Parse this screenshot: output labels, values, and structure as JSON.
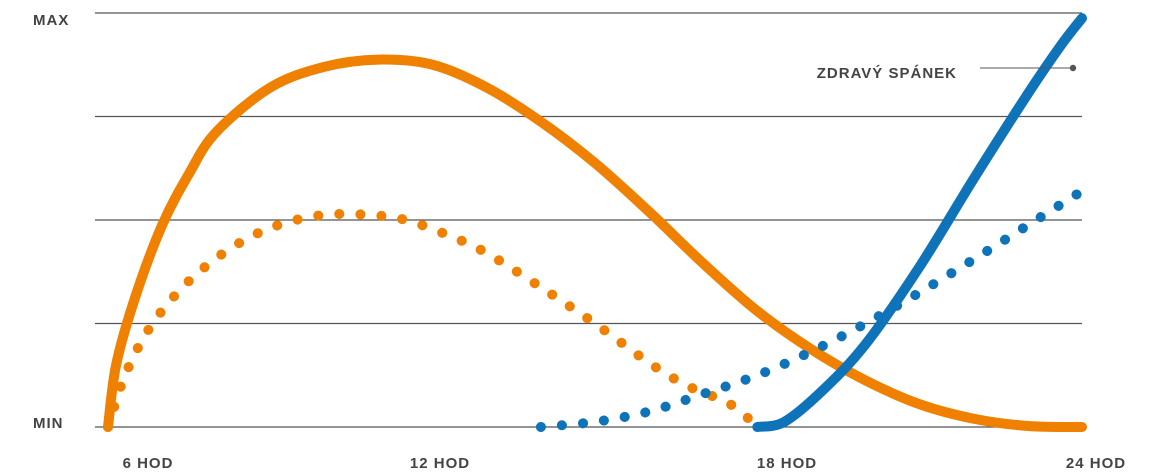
{
  "chart_data": {
    "type": "line",
    "y_labels": [
      "MAX",
      "MIN"
    ],
    "x_labels": [
      "6 HOD",
      "12 HOD",
      "18 HOD",
      "24 HOD"
    ],
    "x_range": [
      6,
      24
    ],
    "y_range": [
      0,
      4
    ],
    "grid": true,
    "annotation": "ZDRAVÝ SPÁNEK",
    "colors": {
      "orange": "#EF8000",
      "blue": "#0E73B8",
      "grid": "#555555",
      "text": "#444444"
    },
    "series": [
      {
        "style": "solid",
        "color": "#EF8000",
        "points": [
          [
            6.0,
            0.0
          ],
          [
            6.15,
            0.6
          ],
          [
            6.5,
            1.25
          ],
          [
            7.0,
            1.95
          ],
          [
            7.5,
            2.45
          ],
          [
            8.0,
            2.85
          ],
          [
            9.0,
            3.28
          ],
          [
            10.0,
            3.48
          ],
          [
            11.0,
            3.55
          ],
          [
            12.0,
            3.5
          ],
          [
            13.0,
            3.28
          ],
          [
            14.0,
            2.95
          ],
          [
            15.0,
            2.55
          ],
          [
            16.0,
            2.08
          ],
          [
            17.0,
            1.58
          ],
          [
            18.0,
            1.12
          ],
          [
            19.0,
            0.75
          ],
          [
            20.0,
            0.45
          ],
          [
            21.0,
            0.22
          ],
          [
            22.0,
            0.08
          ],
          [
            23.0,
            0.01
          ],
          [
            24.0,
            0.0
          ]
        ]
      },
      {
        "style": "dotted",
        "color": "#EF8000",
        "points": [
          [
            6.0,
            0.0
          ],
          [
            6.3,
            0.48
          ],
          [
            6.7,
            0.9
          ],
          [
            7.2,
            1.25
          ],
          [
            7.8,
            1.55
          ],
          [
            8.5,
            1.8
          ],
          [
            9.2,
            1.96
          ],
          [
            10.0,
            2.05
          ],
          [
            10.8,
            2.05
          ],
          [
            11.5,
            2.0
          ],
          [
            12.3,
            1.85
          ],
          [
            13.0,
            1.68
          ],
          [
            14.0,
            1.35
          ],
          [
            15.0,
            1.0
          ],
          [
            16.0,
            0.62
          ],
          [
            16.7,
            0.4
          ],
          [
            17.5,
            0.22
          ],
          [
            18.0,
            0.0
          ]
        ]
      },
      {
        "style": "solid",
        "color": "#0E73B8",
        "points": [
          [
            18.0,
            0.0
          ],
          [
            18.5,
            0.05
          ],
          [
            19.2,
            0.35
          ],
          [
            20.0,
            0.8
          ],
          [
            21.0,
            1.55
          ],
          [
            22.0,
            2.4
          ],
          [
            23.0,
            3.22
          ],
          [
            23.6,
            3.68
          ],
          [
            24.0,
            3.95
          ]
        ]
      },
      {
        "style": "dotted",
        "color": "#0E73B8",
        "points": [
          [
            14.0,
            0.0
          ],
          [
            15.0,
            0.05
          ],
          [
            16.0,
            0.15
          ],
          [
            17.0,
            0.32
          ],
          [
            18.0,
            0.5
          ],
          [
            19.0,
            0.73
          ],
          [
            20.0,
            1.0
          ],
          [
            21.0,
            1.3
          ],
          [
            22.0,
            1.62
          ],
          [
            23.0,
            1.95
          ],
          [
            24.0,
            2.28
          ]
        ]
      }
    ]
  }
}
